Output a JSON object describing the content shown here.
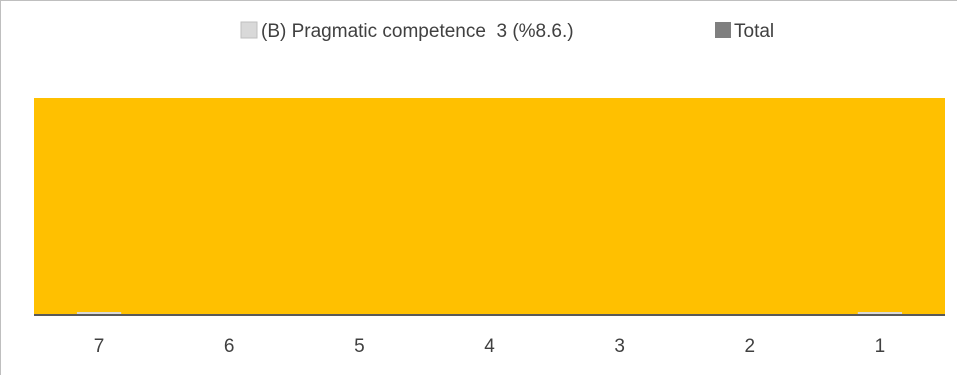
{
  "chart_data": {
    "type": "bar",
    "categories": [
      "7",
      "6",
      "5",
      "4",
      "3",
      "2",
      "1"
    ],
    "series": [
      {
        "name": "(B) Pragmatic competence  3 (%8.6.)",
        "color": "#d9d9d9",
        "values": [
          1,
          0,
          0,
          0,
          0,
          0,
          1
        ]
      },
      {
        "name": "Total",
        "color": "#7f7f7f",
        "values": [
          0,
          0,
          0,
          0,
          0,
          0,
          0
        ]
      }
    ],
    "area_fill_color": "#ffc000",
    "axis_line_color": "#595959",
    "legend_position": "top",
    "gridlines": false
  }
}
